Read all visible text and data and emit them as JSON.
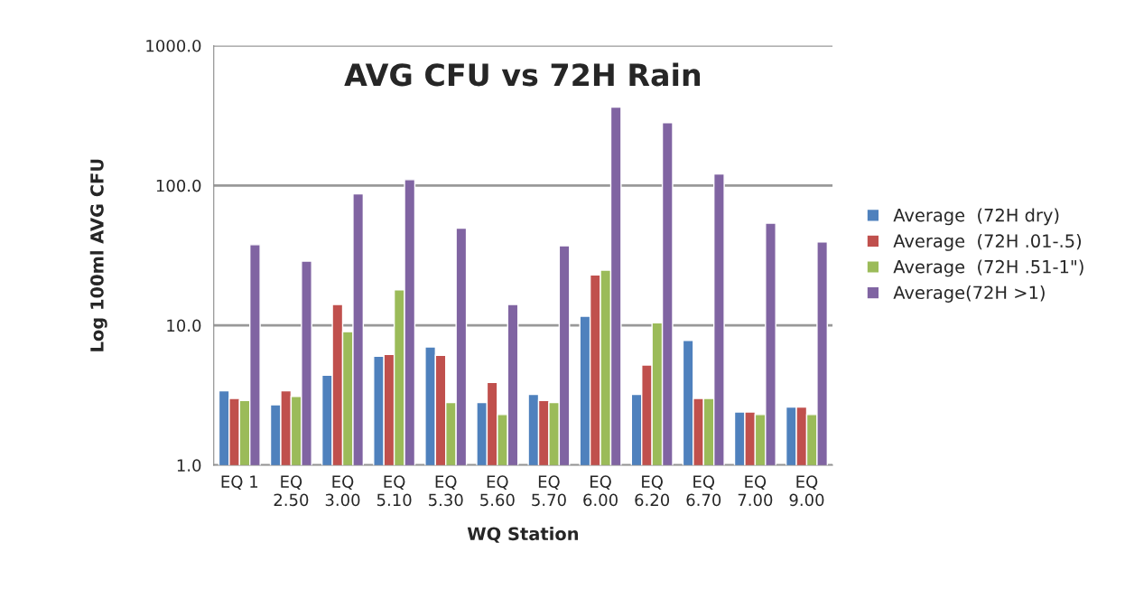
{
  "chart_data": {
    "type": "bar",
    "title": "AVG CFU vs 72H Rain",
    "xlabel": "WQ Station",
    "ylabel": "Log 100ml AVG CFU",
    "categories": [
      "EQ 1",
      "EQ 2.50",
      "EQ 3.00",
      "EQ 5.10",
      "EQ 5.30",
      "EQ 5.60",
      "EQ 5.70",
      "EQ 6.00",
      "EQ 6.20",
      "EQ 6.70",
      "EQ 7.00",
      "EQ 9.00"
    ],
    "series": [
      {
        "name": "Average  (72H dry)",
        "color": "#4f81bd",
        "values": [
          3.4,
          2.7,
          4.4,
          6.0,
          7.0,
          2.8,
          3.2,
          11.6,
          3.2,
          7.8,
          2.4,
          2.6
        ]
      },
      {
        "name": "Average  (72H .01-.5)",
        "color": "#c0504d",
        "values": [
          3.0,
          3.4,
          14.1,
          6.2,
          6.1,
          3.9,
          2.9,
          22.9,
          5.2,
          3.0,
          2.4,
          2.6
        ]
      },
      {
        "name": "Average  (72H .51-1\")",
        "color": "#9bbb59",
        "values": [
          2.9,
          3.1,
          9.0,
          17.9,
          2.8,
          2.3,
          2.8,
          24.8,
          10.4,
          3.0,
          2.3,
          2.3
        ]
      },
      {
        "name": "Average(72H >1)",
        "color": "#8064a2",
        "values": [
          37.7,
          28.8,
          87,
          110,
          49.5,
          14.1,
          37,
          363,
          281,
          121,
          53.7,
          39.4
        ]
      }
    ],
    "log": "y",
    "ylim": [
      1,
      1000
    ],
    "yticks": [
      {
        "value": 1,
        "label": "1.0"
      },
      {
        "value": 10,
        "label": "10.0"
      },
      {
        "value": 100,
        "label": "100.0"
      },
      {
        "value": 1000,
        "label": "1000.0"
      }
    ],
    "grid": "y",
    "legend": "right"
  }
}
